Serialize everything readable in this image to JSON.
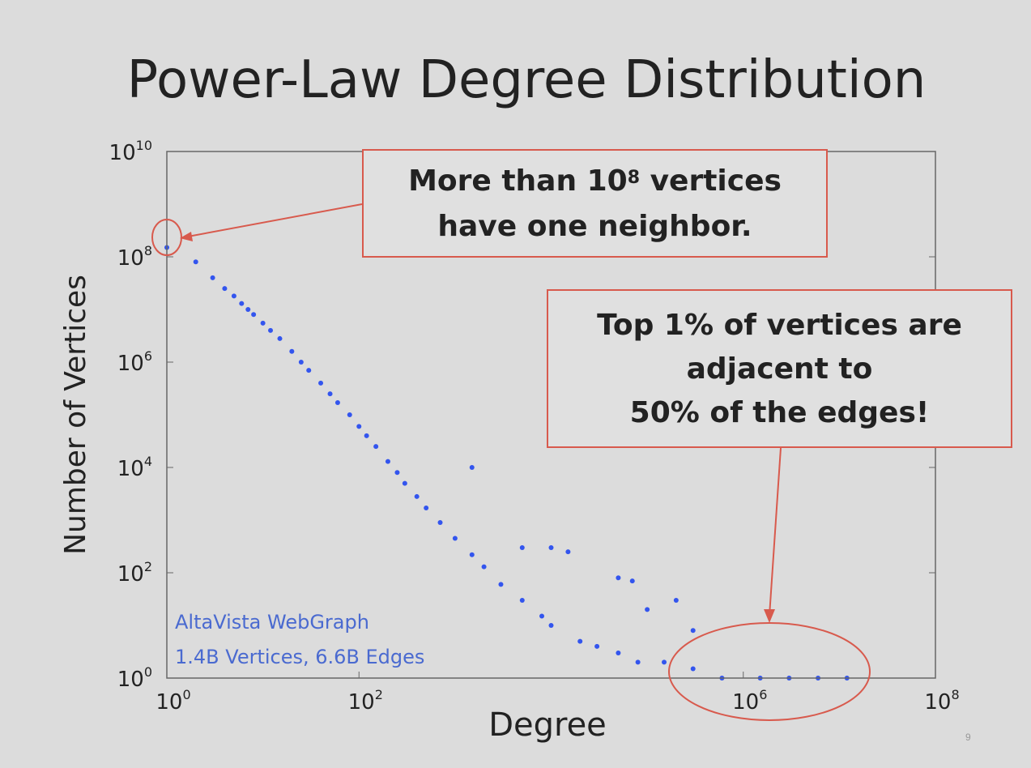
{
  "slide": {
    "title": "Power-Law Degree Distribution",
    "page_number": "9"
  },
  "callouts": {
    "top": {
      "prefix": "More than 10",
      "sup": "8",
      "suffix": " vertices",
      "line2": "have one neighbor."
    },
    "right": {
      "line1": "Top 1% of vertices are",
      "line2": "adjacent to",
      "line3": "50% of the edges!"
    }
  },
  "dataset": {
    "line1": "AltaVista WebGraph",
    "line2": "1.4B Vertices, 6.6B Edges"
  },
  "colors": {
    "points": "#3355ee",
    "annotation": "#d85a4d",
    "note_text": "#4a6ad0"
  },
  "chart_data": {
    "type": "scatter",
    "xlabel": "Degree",
    "ylabel": "Number of Vertices",
    "x_scale": "log",
    "y_scale": "log",
    "xlim": [
      1,
      100000000
    ],
    "ylim": [
      1,
      10000000000
    ],
    "x_ticks": [
      {
        "base": "10",
        "exp": "0",
        "value": 1
      },
      {
        "base": "10",
        "exp": "2",
        "value": 100
      },
      {
        "base": "10",
        "exp": "6",
        "value": 1000000
      },
      {
        "base": "10",
        "exp": "8",
        "value": 100000000
      }
    ],
    "y_ticks": [
      {
        "base": "10",
        "exp": "0",
        "value": 1
      },
      {
        "base": "10",
        "exp": "2",
        "value": 100
      },
      {
        "base": "10",
        "exp": "4",
        "value": 10000
      },
      {
        "base": "10",
        "exp": "6",
        "value": 1000000
      },
      {
        "base": "10",
        "exp": "8",
        "value": 100000000
      },
      {
        "base": "10",
        "exp": "10",
        "value": 10000000000
      }
    ],
    "grid": false,
    "points": [
      [
        1,
        150000000
      ],
      [
        2,
        80000000
      ],
      [
        3,
        40000000
      ],
      [
        4,
        25000000
      ],
      [
        5,
        18000000
      ],
      [
        6,
        13000000
      ],
      [
        7,
        10000000
      ],
      [
        8,
        8000000
      ],
      [
        10,
        5500000
      ],
      [
        12,
        4000000
      ],
      [
        15,
        2800000
      ],
      [
        20,
        1600000
      ],
      [
        25,
        1000000
      ],
      [
        30,
        700000
      ],
      [
        40,
        400000
      ],
      [
        50,
        250000
      ],
      [
        60,
        170000
      ],
      [
        80,
        100000
      ],
      [
        100,
        60000
      ],
      [
        120,
        40000
      ],
      [
        150,
        25000
      ],
      [
        200,
        13000
      ],
      [
        250,
        8000
      ],
      [
        300,
        5000
      ],
      [
        400,
        2800
      ],
      [
        500,
        1700
      ],
      [
        700,
        900
      ],
      [
        1000,
        450
      ],
      [
        1500,
        220
      ],
      [
        2000,
        130
      ],
      [
        3000,
        60
      ],
      [
        5000,
        30
      ],
      [
        8000,
        15
      ],
      [
        10000,
        10
      ],
      [
        20000,
        5
      ],
      [
        30000,
        4
      ],
      [
        50000,
        3
      ],
      [
        80000,
        2
      ],
      [
        150000,
        2
      ],
      [
        300000,
        1.5
      ],
      [
        600000,
        1
      ],
      [
        1500000,
        1
      ],
      [
        3000000,
        1
      ],
      [
        6000000,
        1
      ],
      [
        12000000,
        1
      ],
      [
        1500,
        10000
      ],
      [
        5000,
        300
      ],
      [
        10000,
        300
      ],
      [
        15000,
        250
      ],
      [
        50000,
        80
      ],
      [
        70000,
        70
      ],
      [
        200000,
        30
      ],
      [
        100000,
        20
      ],
      [
        300000,
        8
      ]
    ]
  }
}
